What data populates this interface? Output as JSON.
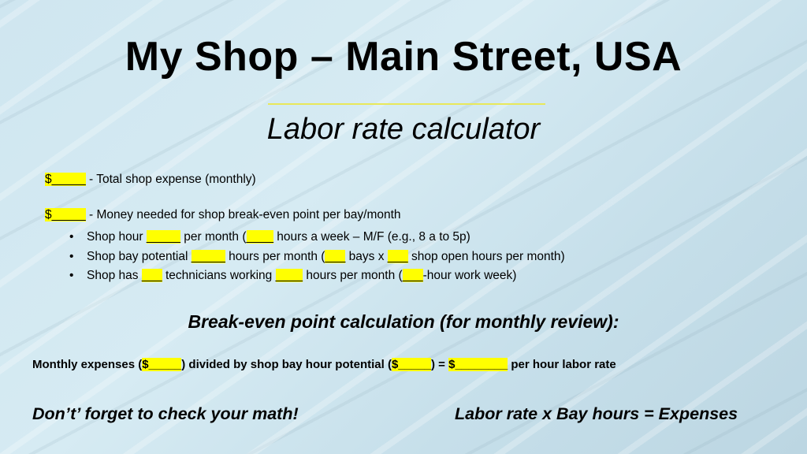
{
  "title": "My Shop – Main Street, USA",
  "subtitle": "Labor rate calculator",
  "line1": {
    "blank": "$_____",
    "text": " - Total shop expense (monthly)"
  },
  "line2": {
    "blank": "$_____",
    "text": " - Money needed for shop break-even point per bay/month"
  },
  "bullets": [
    {
      "a": "Shop hour ",
      "b1": "_____",
      "c": " per month (",
      "b2": "____",
      "d": " hours a week – M/F (e.g., 8 a to 5p)"
    },
    {
      "a": "Shop bay potential ",
      "b1": "_____",
      "c": " hours per month (",
      "b2": "___",
      "d": " bays x ",
      "b3": "___",
      "e": " shop open hours per month)"
    },
    {
      "a": "Shop has ",
      "b1": "___",
      "c": " technicians working ",
      "b2": "____",
      "d": " hours per month (",
      "b3": "___",
      "e": "-hour work week)"
    }
  ],
  "bullet_char": "•",
  "section_heading": "Break-even point calculation (for monthly review):",
  "formula": {
    "a": "Monthly expenses (",
    "b1": "$_____",
    "c": ") divided by shop bay hour potential (",
    "b2": "$_____",
    "d": ") = ",
    "b3": "$________",
    "e": " per hour labor rate"
  },
  "footer_left": "Don’t’ forget to check your math!",
  "footer_right": "Labor rate x Bay hours = Expenses",
  "colors": {
    "highlight": "#ffff00",
    "background": "#cfe6f0",
    "rule": "#e8e85a"
  }
}
